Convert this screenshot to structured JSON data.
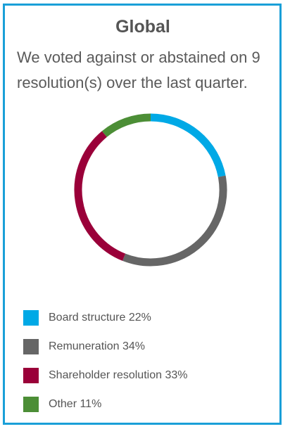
{
  "title": "Global",
  "subtitle": "We voted against or abstained on 9 resolution(s) over the last quarter.",
  "chart_data": {
    "type": "pie",
    "categories": [
      "Board structure",
      "Remuneration",
      "Shareholder resolution",
      "Other"
    ],
    "values": [
      22,
      34,
      33,
      11
    ],
    "colors": [
      "#00a9e6",
      "#666666",
      "#9a0039",
      "#4c8e36"
    ],
    "legend": [
      "Board structure 22%",
      "Remuneration 34%",
      "Shareholder resolution 33%",
      "Other 11%"
    ],
    "legend_position": "bottom"
  }
}
